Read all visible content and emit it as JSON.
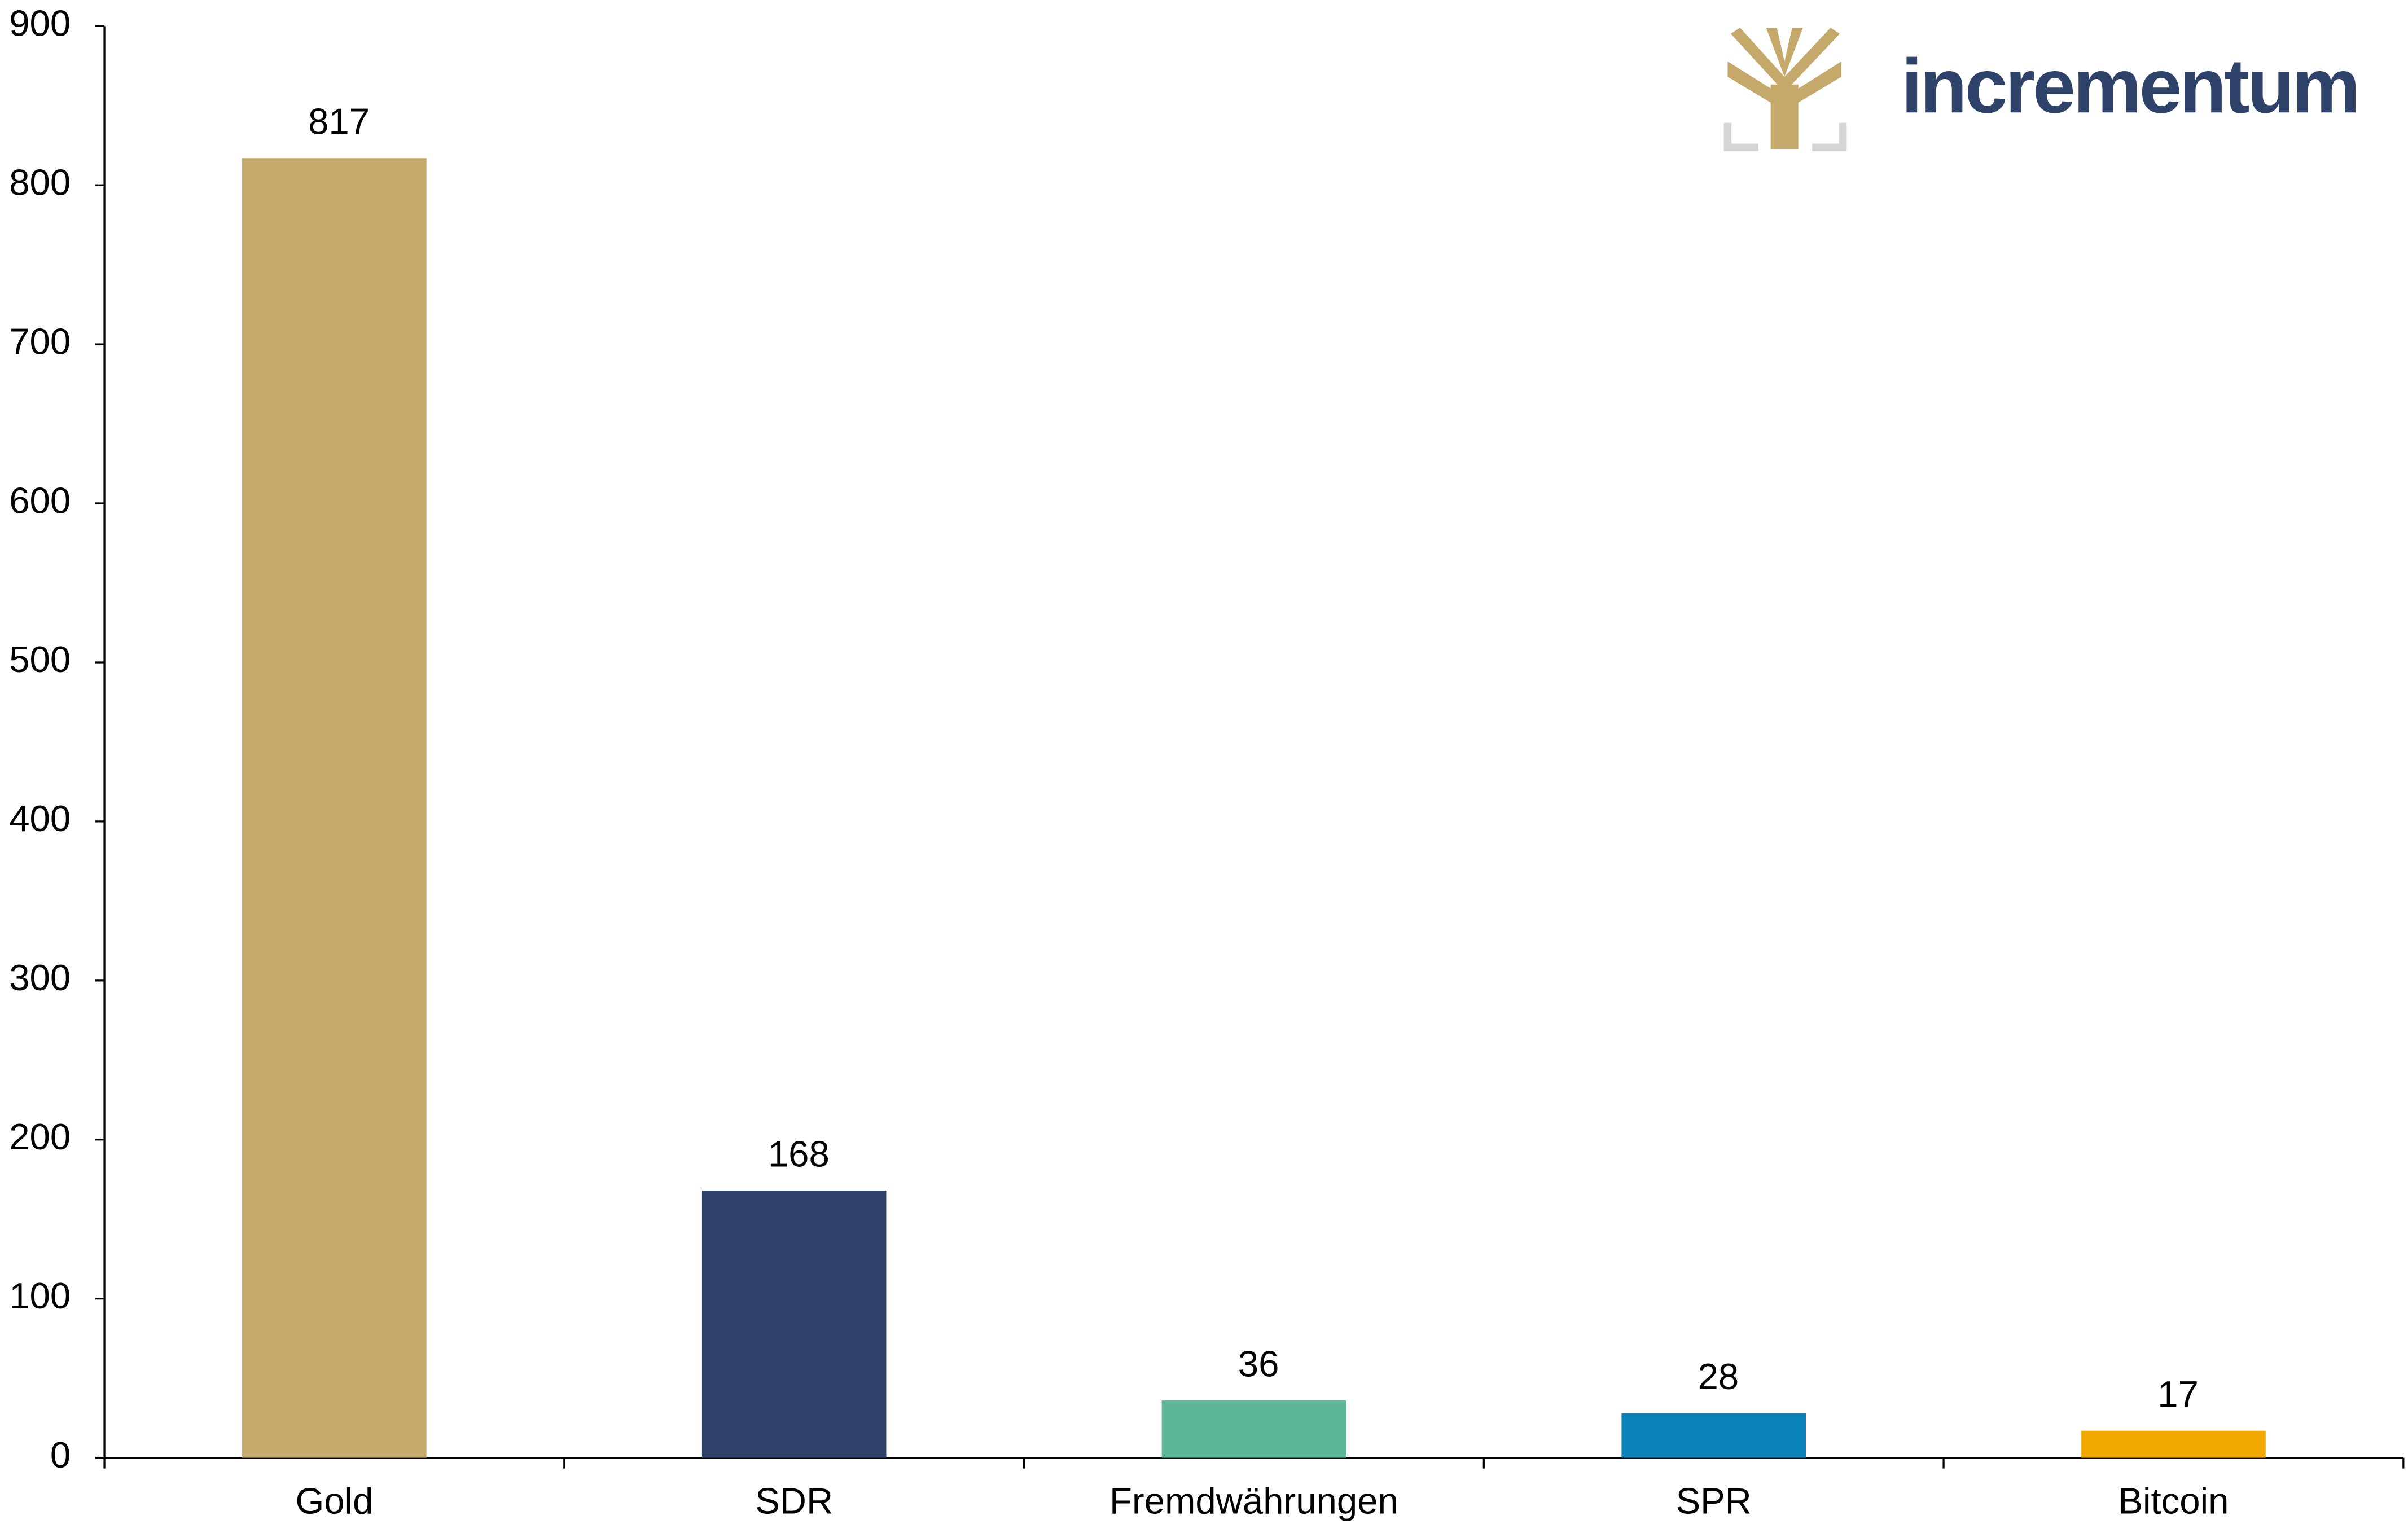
{
  "logo": "incrementum",
  "chart_data": {
    "type": "bar",
    "categories": [
      "Gold",
      "SDR",
      "Fremdwährungen",
      "SPR",
      "Bitcoin"
    ],
    "values": [
      817,
      168,
      36,
      28,
      17
    ],
    "colors": [
      "#c4a96a",
      "#2e426a",
      "#5bb597",
      "#0b82b8",
      "#f0a800"
    ],
    "ylim": [
      0,
      900
    ],
    "yticks": [
      0,
      100,
      200,
      300,
      400,
      500,
      600,
      700,
      800,
      900
    ],
    "grid": false
  }
}
